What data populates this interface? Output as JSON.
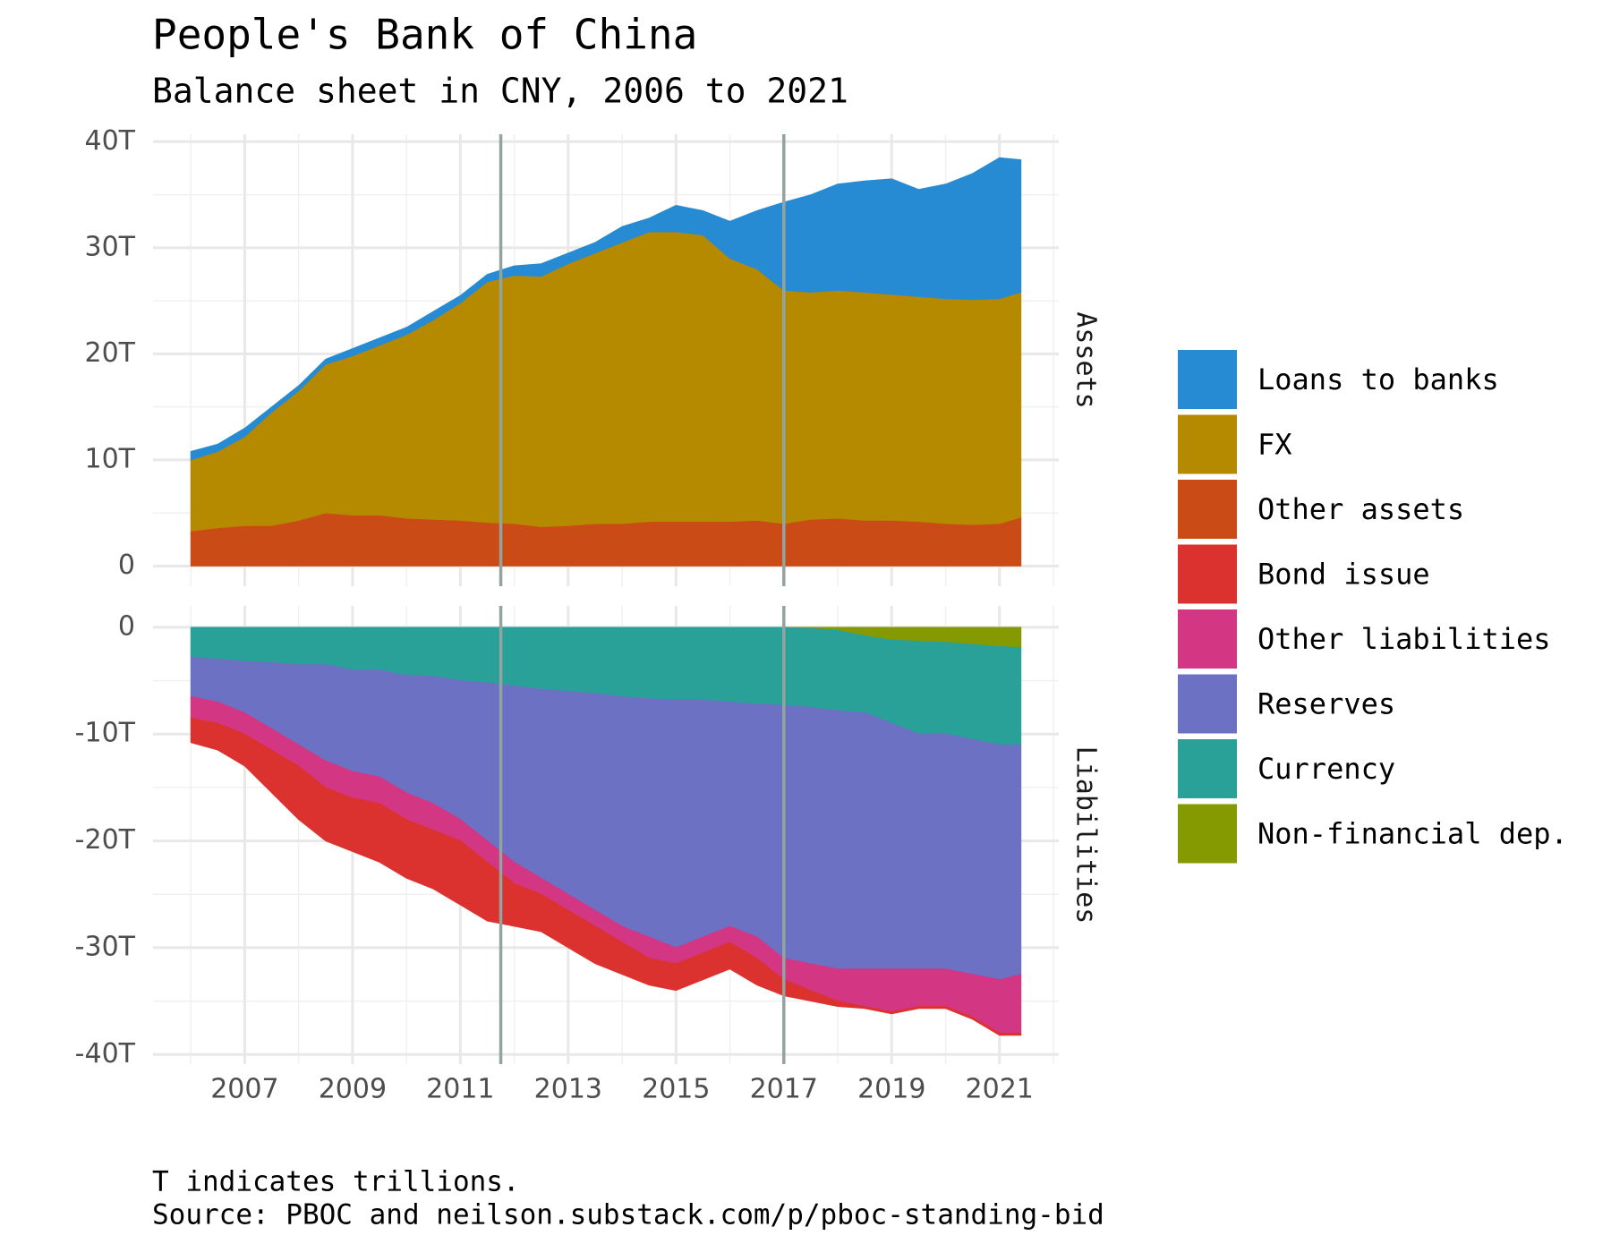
{
  "chart_data": {
    "type": "stacked-area",
    "title": "People's Bank of China",
    "subtitle": "Balance sheet in CNY, 2006 to 2021",
    "caption": [
      "T indicates trillions.",
      "Source: PBOC and neilson.substack.com/p/pboc-standing-bid"
    ],
    "x": [
      2006,
      2006.5,
      2007,
      2007.5,
      2008,
      2008.5,
      2009,
      2009.5,
      2010,
      2010.5,
      2011,
      2011.5,
      2012,
      2012.5,
      2013,
      2013.5,
      2014,
      2014.5,
      2015,
      2015.5,
      2016,
      2016.5,
      2017,
      2017.5,
      2018,
      2018.5,
      2019,
      2019.5,
      2020,
      2020.5,
      2021,
      2021.4
    ],
    "xlim": [
      2005.3,
      2022.1
    ],
    "xticks": [
      2007,
      2009,
      2011,
      2013,
      2015,
      2017,
      2019,
      2021
    ],
    "vlines": [
      2011.75,
      2017
    ],
    "vline_color": "#93a3a0",
    "grid": true,
    "legend": "right",
    "panels": [
      {
        "label": "Assets",
        "ylim": [
          -1.9,
          40.7
        ],
        "yticks": [
          0,
          {
            "value": 10,
            "label": "10T"
          },
          {
            "value": 20,
            "label": "20T"
          },
          {
            "value": 30,
            "label": "30T"
          },
          {
            "value": 40,
            "label": "40T"
          }
        ],
        "series": [
          {
            "name": "Other assets",
            "color": "#cb4b16",
            "values": [
              3.3,
              3.6,
              3.8,
              3.8,
              4.3,
              5.0,
              4.8,
              4.8,
              4.5,
              4.4,
              4.3,
              4.1,
              4.0,
              3.7,
              3.8,
              4.0,
              4.0,
              4.2,
              4.2,
              4.2,
              4.2,
              4.3,
              4.0,
              4.4,
              4.5,
              4.3,
              4.3,
              4.2,
              4.0,
              3.9,
              4.0,
              4.6
            ]
          },
          {
            "name": "FX",
            "color": "#b58900",
            "values": [
              6.7,
              7.2,
              8.4,
              10.7,
              12.2,
              14.0,
              15.0,
              16.0,
              17.3,
              18.8,
              20.5,
              22.7,
              23.4,
              23.6,
              24.7,
              25.5,
              26.5,
              27.3,
              27.3,
              27.0,
              24.8,
              23.7,
              22.0,
              21.4,
              21.5,
              21.5,
              21.3,
              21.2,
              21.2,
              21.2,
              21.2,
              21.2
            ]
          },
          {
            "name": "Loans to banks",
            "color": "#268bd2",
            "values": [
              0.8,
              0.7,
              0.8,
              0.5,
              0.5,
              0.5,
              0.7,
              0.7,
              0.7,
              0.8,
              0.7,
              0.7,
              0.9,
              1.2,
              1.0,
              1.0,
              1.5,
              1.3,
              2.5,
              2.3,
              3.5,
              5.5,
              8.3,
              9.2,
              10.0,
              10.5,
              10.9,
              10.1,
              10.8,
              11.9,
              13.3,
              12.5
            ]
          }
        ]
      },
      {
        "label": "Liabilities",
        "ylim": [
          -40.9,
          2.0
        ],
        "yticks": [
          {
            "value": -40,
            "label": "-40T"
          },
          {
            "value": -30,
            "label": "-30T"
          },
          {
            "value": -20,
            "label": "-20T"
          },
          {
            "value": -10,
            "label": "-10T"
          },
          0
        ],
        "series": [
          {
            "name": "Non-financial dep.",
            "color": "#859900",
            "values": [
              0,
              0,
              0,
              0,
              0,
              0,
              0,
              0,
              0,
              0,
              0,
              0,
              0,
              0,
              0,
              0,
              0,
              0,
              0,
              0,
              0,
              0,
              0,
              -0.1,
              -0.3,
              -0.8,
              -1.2,
              -1.3,
              -1.4,
              -1.6,
              -1.8,
              -1.9
            ]
          },
          {
            "name": "Currency",
            "color": "#2aa198",
            "values": [
              -2.8,
              -3,
              -3.2,
              -3.3,
              -3.5,
              -3.5,
              -4,
              -4,
              -4.5,
              -4.6,
              -5,
              -5.2,
              -5.5,
              -5.8,
              -6,
              -6.2,
              -6.5,
              -6.7,
              -6.8,
              -6.8,
              -7,
              -7.2,
              -7.3,
              -7.4,
              -7.5,
              -7.2,
              -7.8,
              -8.7,
              -8.6,
              -8.9,
              -9.2,
              -9.1
            ]
          },
          {
            "name": "Reserves",
            "color": "#6c71c4",
            "values": [
              -3.7,
              -4,
              -4.8,
              -6.2,
              -7.5,
              -9,
              -9.5,
              -10,
              -11,
              -11.9,
              -13,
              -14.8,
              -16.5,
              -17.7,
              -19,
              -20.3,
              -21.5,
              -22.3,
              -23.2,
              -22.2,
              -21,
              -21.8,
              -23.7,
              -24,
              -24.2,
              -24,
              -23,
              -22,
              -22,
              -22,
              -22,
              -21.5
            ]
          },
          {
            "name": "Other liabilities",
            "color": "#d33682",
            "values": [
              -2,
              -2,
              -2,
              -2,
              -2,
              -2.5,
              -2.5,
              -2.5,
              -2.5,
              -2.5,
              -2,
              -2,
              -2,
              -1.5,
              -1.5,
              -1.5,
              -1.5,
              -2,
              -1.5,
              -1.5,
              -1.5,
              -2,
              -2,
              -2.5,
              -3,
              -3.5,
              -4,
              -3.5,
              -3.5,
              -4,
              -5,
              -5.5
            ]
          },
          {
            "name": "Bond issue",
            "color": "#dc322f",
            "values": [
              -2.3,
              -2.5,
              -3,
              -4,
              -5,
              -5,
              -5,
              -5.5,
              -5.5,
              -5.5,
              -6,
              -5.5,
              -4,
              -3.5,
              -3.5,
              -3.5,
              -3,
              -2.5,
              -2.5,
              -2.5,
              -2.5,
              -2.5,
              -1.5,
              -1,
              -0.5,
              -0.2,
              -0.2,
              -0.2,
              -0.2,
              -0.2,
              -0.2,
              -0.2
            ]
          }
        ]
      }
    ]
  }
}
